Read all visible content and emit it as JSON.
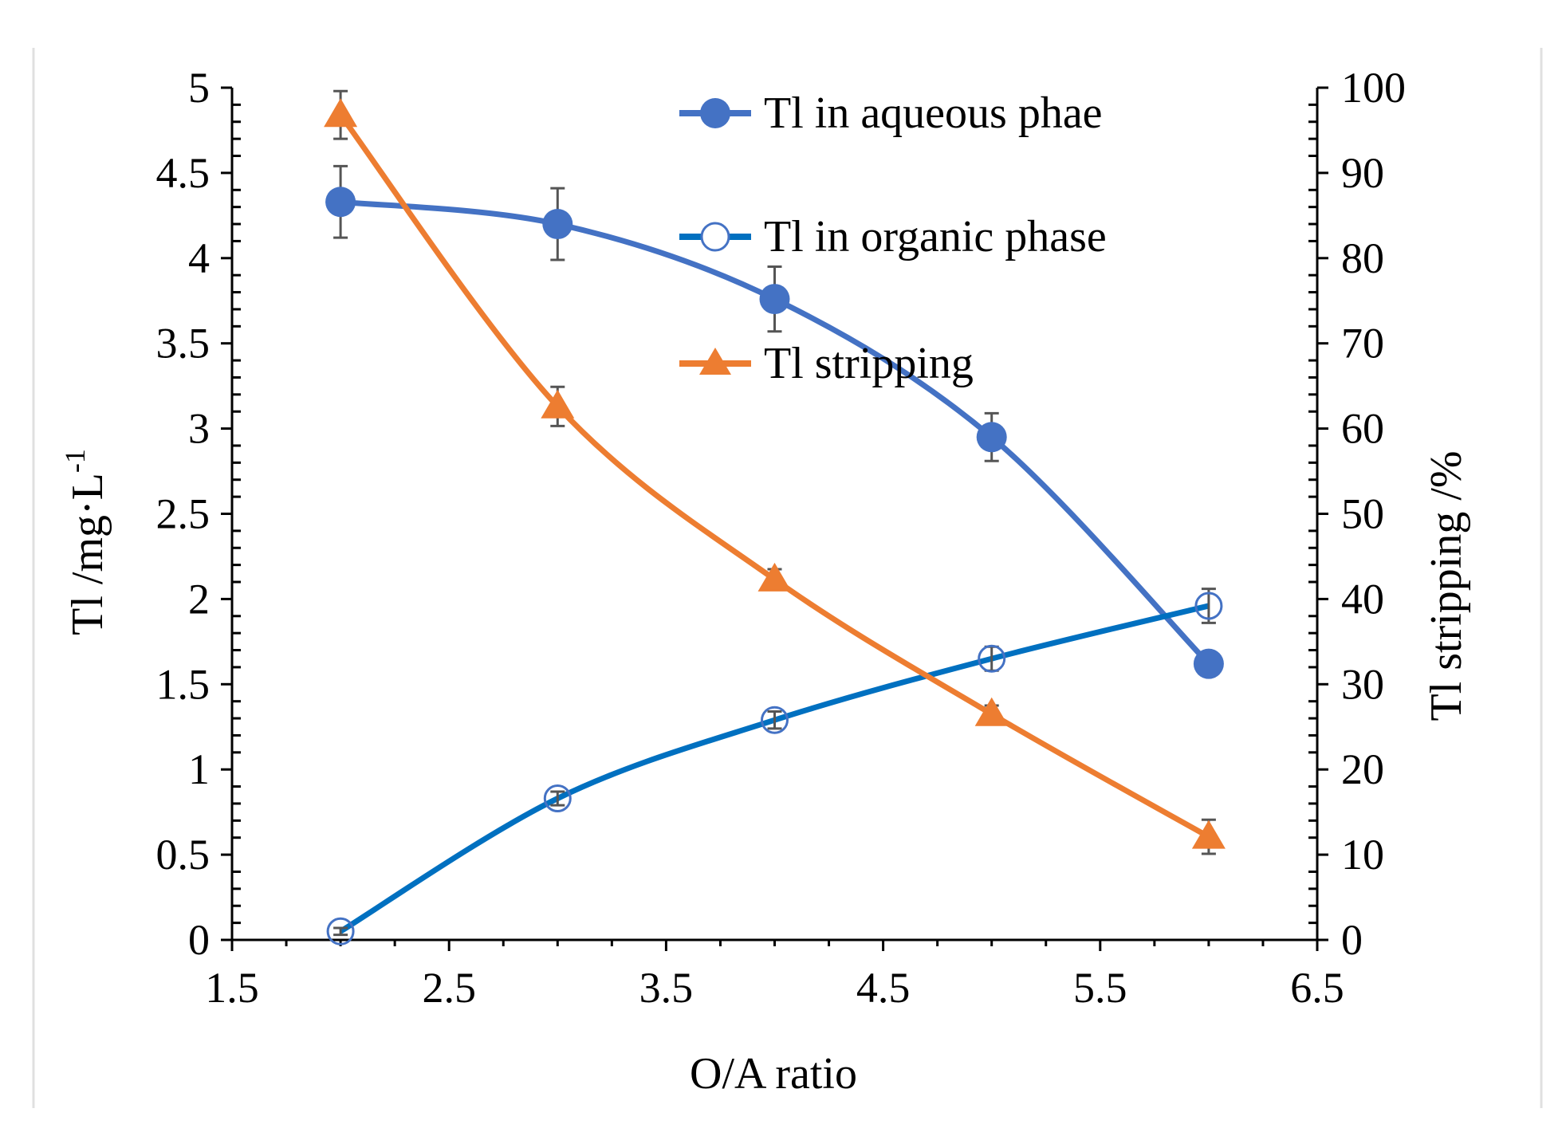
{
  "chart_data": {
    "type": "line",
    "title": "",
    "xlabel": "O/A ratio",
    "ylabel_left": "Tl /mg·L",
    "ylabel_left_sup": "-1",
    "ylabel_right": "Tl stripping /%",
    "xlim": [
      1.5,
      6.5
    ],
    "ylim_left": [
      0,
      5
    ],
    "ylim_right": [
      0,
      100
    ],
    "x_ticks": [
      "1.5",
      "2.5",
      "3.5",
      "4.5",
      "5.5",
      "6.5"
    ],
    "y_left_ticks": [
      "0",
      "0.5",
      "1",
      "1.5",
      "2",
      "2.5",
      "3",
      "3.5",
      "4",
      "4.5",
      "5"
    ],
    "y_right_ticks": [
      "0",
      "10",
      "20",
      "30",
      "40",
      "50",
      "60",
      "70",
      "80",
      "90",
      "100"
    ],
    "grid": false,
    "legend_position": "top-center",
    "series": [
      {
        "name": "Tl in aqueous phae",
        "axis": "left",
        "marker": "filled-circle",
        "color": "#4472C4",
        "x": [
          2,
          3,
          4,
          5,
          6
        ],
        "values": [
          4.33,
          4.2,
          3.76,
          2.95,
          1.62
        ],
        "errors": [
          0.21,
          0.21,
          0.19,
          0.14,
          0.06
        ]
      },
      {
        "name": "Tl in organic phase",
        "axis": "left",
        "marker": "open-circle",
        "color": "#0070C0",
        "x": [
          2,
          3,
          4,
          5,
          6
        ],
        "values": [
          0.05,
          0.83,
          1.29,
          1.65,
          1.96
        ],
        "errors": [
          0.02,
          0.04,
          0.05,
          0.07,
          0.1
        ]
      },
      {
        "name": "Tl stripping",
        "axis": "right",
        "marker": "filled-triangle",
        "color": "#ED7D31",
        "x": [
          2,
          3,
          4,
          5,
          6
        ],
        "values": [
          96.8,
          62.6,
          42.3,
          26.5,
          12.1
        ],
        "errors": [
          2.8,
          2.3,
          1.2,
          1.0,
          2.0
        ]
      }
    ]
  }
}
